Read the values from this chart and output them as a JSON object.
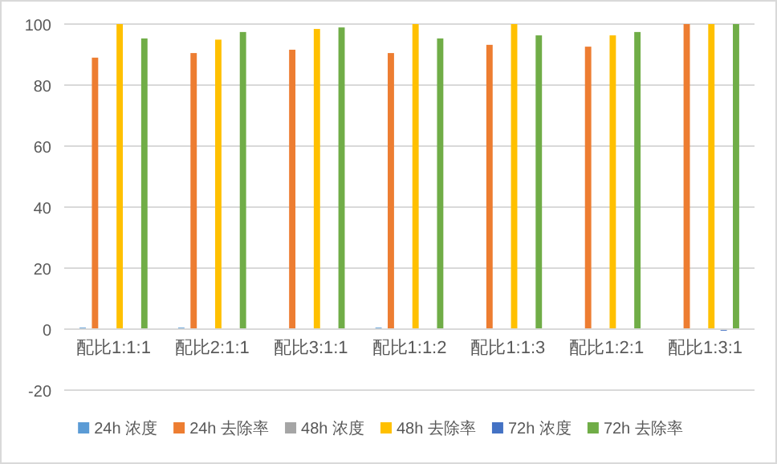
{
  "chart_data": {
    "type": "bar",
    "categories": [
      "配比1:1:1",
      "配比2:1:1",
      "配比3:1:1",
      "配比1:1:2",
      "配比1:1:3",
      "配比1:2:1",
      "配比1:3:1"
    ],
    "series": [
      {
        "name": "24h 浓度",
        "color": "#5b9bd5",
        "values": [
          0.5,
          0.5,
          0,
          0.5,
          0,
          0,
          0
        ]
      },
      {
        "name": "24h 去除率",
        "color": "#ed7d31",
        "values": [
          89,
          90.5,
          91.6,
          90.5,
          93.2,
          92.6,
          100
        ]
      },
      {
        "name": "48h 浓度",
        "color": "#a5a5a5",
        "values": [
          0,
          0,
          0,
          0,
          0,
          0,
          0
        ]
      },
      {
        "name": "48h 去除率",
        "color": "#ffc000",
        "values": [
          100,
          94.9,
          98.4,
          100,
          100,
          96.3,
          100
        ]
      },
      {
        "name": "72h 浓度",
        "color": "#4472c4",
        "values": [
          0,
          0,
          0,
          0,
          0,
          0,
          -0.5
        ]
      },
      {
        "name": "72h 去除率",
        "color": "#70ad47",
        "values": [
          95.3,
          97.4,
          98.9,
          95.3,
          96.3,
          97.4,
          100
        ]
      }
    ],
    "ylim": [
      -20,
      100
    ],
    "yticks": [
      -20,
      0,
      20,
      40,
      60,
      80,
      100
    ],
    "grid": "y",
    "legend": "bottom"
  }
}
